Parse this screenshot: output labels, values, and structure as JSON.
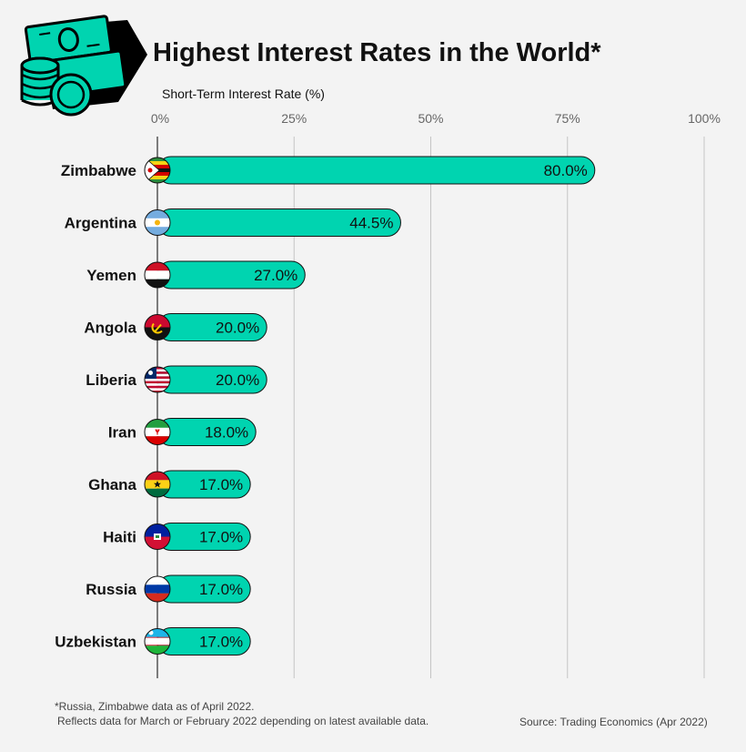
{
  "chart_data": {
    "type": "bar",
    "orientation": "horizontal",
    "title": "Highest Interest Rates in the World*",
    "xlabel": "Short-Term Interest Rate (%)",
    "xlim": [
      0,
      100
    ],
    "x_ticks": [
      "0%",
      "25%",
      "50%",
      "75%",
      "100%"
    ],
    "x_tick_values": [
      0,
      25,
      50,
      75,
      100
    ],
    "categories": [
      "Zimbabwe",
      "Argentina",
      "Yemen",
      "Angola",
      "Liberia",
      "Iran",
      "Ghana",
      "Haiti",
      "Russia",
      "Uzbekistan"
    ],
    "values": [
      80.0,
      44.5,
      27.0,
      20.0,
      20.0,
      18.0,
      17.0,
      17.0,
      17.0,
      17.0
    ],
    "value_labels": [
      "80.0%",
      "44.5%",
      "27.0%",
      "20.0%",
      "20.0%",
      "18.0%",
      "17.0%",
      "17.0%",
      "17.0%",
      "17.0%"
    ],
    "bar_color": "#00d4b0",
    "grid": true
  },
  "footnotes": {
    "note_line1": "*Russia, Zimbabwe data as of April 2022.",
    "note_line2": "Reflects data for March or February 2022 depending on latest available data.",
    "source": "Source: Trading Economics (Apr 2022)"
  },
  "icons": {
    "header_icon": "money-stack-coins-icon",
    "flags": [
      "zimbabwe-flag-icon",
      "argentina-flag-icon",
      "yemen-flag-icon",
      "angola-flag-icon",
      "liberia-flag-icon",
      "iran-flag-icon",
      "ghana-flag-icon",
      "haiti-flag-icon",
      "russia-flag-icon",
      "uzbekistan-flag-icon"
    ]
  }
}
